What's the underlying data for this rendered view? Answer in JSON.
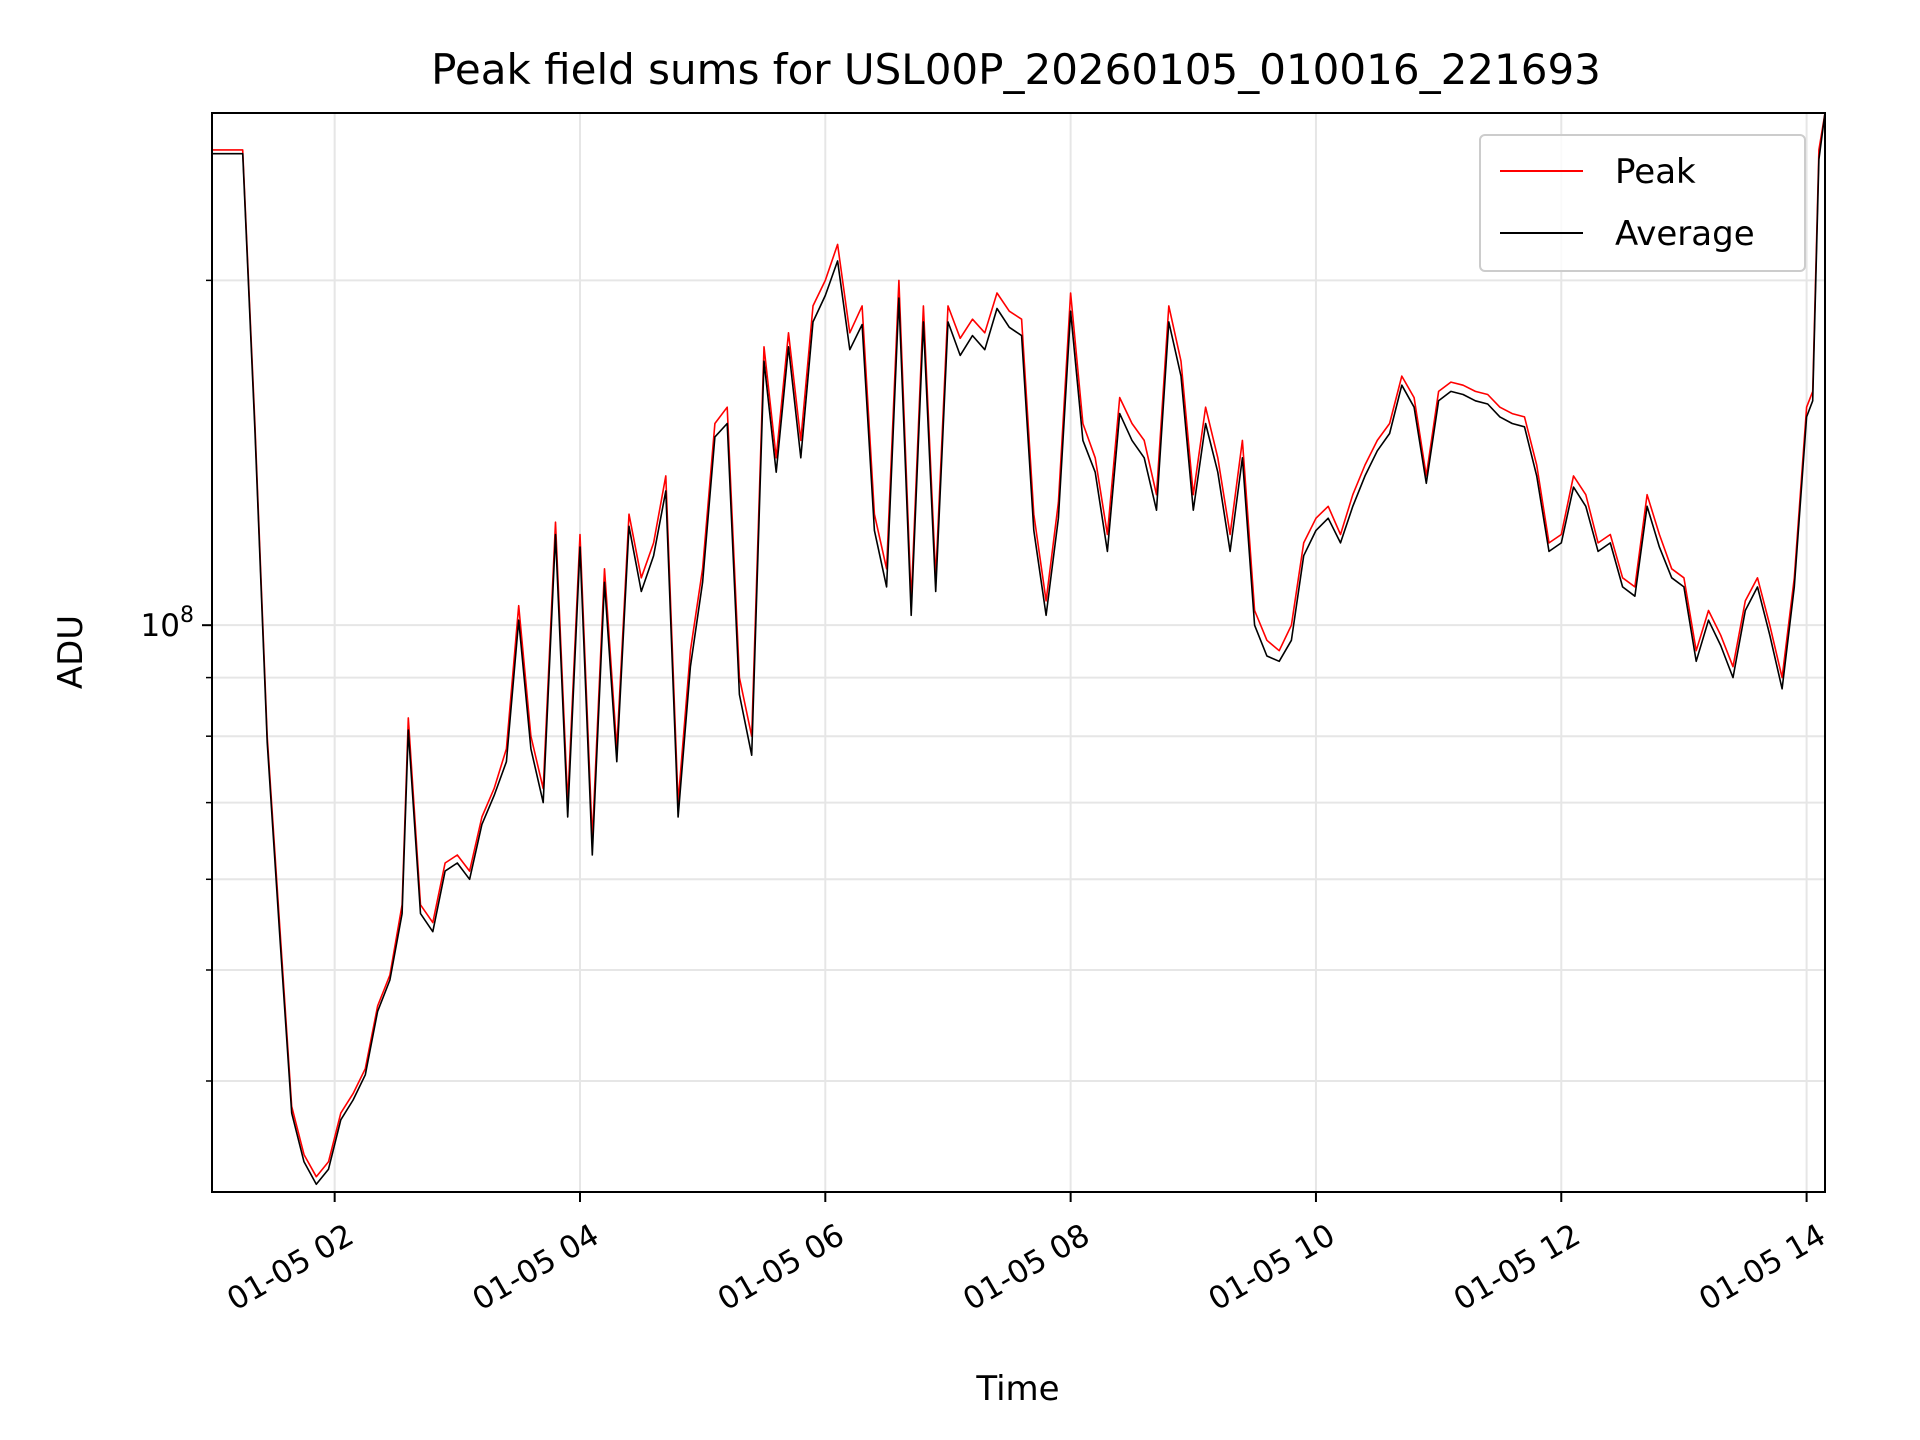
{
  "chart_data": {
    "type": "line",
    "title": "Peak field sums for USL00P_20260105_010016_221693",
    "xlabel": "Time",
    "ylabel": "ADU",
    "yscale": "log",
    "ylim": [
      32000000,
      280000000
    ],
    "xlim_hours": [
      1.0,
      14.15
    ],
    "x_ticks": [
      {
        "hour": 2,
        "label": "01-05 02"
      },
      {
        "hour": 4,
        "label": "01-05 04"
      },
      {
        "hour": 6,
        "label": "01-05 06"
      },
      {
        "hour": 8,
        "label": "01-05 08"
      },
      {
        "hour": 10,
        "label": "01-05 10"
      },
      {
        "hour": 12,
        "label": "01-05 12"
      },
      {
        "hour": 14,
        "label": "01-05 14"
      }
    ],
    "y_major_ticks": [
      {
        "value": 100000000,
        "base": "10",
        "exp": "8"
      }
    ],
    "y_minor_ticks": [
      40000000,
      50000000,
      60000000,
      70000000,
      80000000,
      90000000,
      200000000
    ],
    "grid": true,
    "legend_position": "top-right",
    "legend": [
      {
        "name": "Peak",
        "color": "#ff0000"
      },
      {
        "name": "Average",
        "color": "#000000"
      }
    ],
    "series": [
      {
        "name": "Peak",
        "color": "#ff0000",
        "x_hours": [
          1.0,
          1.15,
          1.25,
          1.35,
          1.45,
          1.55,
          1.65,
          1.75,
          1.85,
          1.95,
          2.05,
          2.15,
          2.25,
          2.35,
          2.45,
          2.55,
          2.6,
          2.7,
          2.8,
          2.9,
          3.0,
          3.1,
          3.2,
          3.3,
          3.4,
          3.5,
          3.6,
          3.7,
          3.8,
          3.9,
          4.0,
          4.1,
          4.2,
          4.3,
          4.4,
          4.5,
          4.6,
          4.7,
          4.8,
          4.9,
          5.0,
          5.1,
          5.2,
          5.3,
          5.4,
          5.5,
          5.6,
          5.7,
          5.8,
          5.9,
          6.0,
          6.1,
          6.2,
          6.3,
          6.4,
          6.5,
          6.6,
          6.7,
          6.8,
          6.9,
          7.0,
          7.1,
          7.2,
          7.3,
          7.4,
          7.5,
          7.6,
          7.7,
          7.8,
          7.9,
          8.0,
          8.1,
          8.2,
          8.3,
          8.4,
          8.5,
          8.6,
          8.7,
          8.8,
          8.9,
          9.0,
          9.1,
          9.2,
          9.3,
          9.4,
          9.5,
          9.6,
          9.7,
          9.8,
          9.9,
          10.0,
          10.1,
          10.2,
          10.3,
          10.4,
          10.5,
          10.6,
          10.7,
          10.8,
          10.9,
          11.0,
          11.1,
          11.2,
          11.3,
          11.4,
          11.5,
          11.6,
          11.7,
          11.8,
          11.9,
          12.0,
          12.1,
          12.2,
          12.3,
          12.4,
          12.5,
          12.6,
          12.7,
          12.8,
          12.9,
          13.0,
          13.1,
          13.2,
          13.3,
          13.4,
          13.5,
          13.6,
          13.7,
          13.8,
          13.9,
          14.0,
          14.05,
          14.1,
          14.15
        ],
        "values": [
          260000000,
          260000000,
          260000000,
          150000000,
          80000000,
          55000000,
          38000000,
          34500000,
          33000000,
          34000000,
          37500000,
          39000000,
          41000000,
          46500000,
          49500000,
          57000000,
          83000000,
          57000000,
          55000000,
          62000000,
          63000000,
          61000000,
          68000000,
          72000000,
          78000000,
          104000000,
          80000000,
          72000000,
          123000000,
          70000000,
          120000000,
          65000000,
          112000000,
          78000000,
          125000000,
          110000000,
          118000000,
          135000000,
          70000000,
          95000000,
          112000000,
          150000000,
          155000000,
          90000000,
          80000000,
          175000000,
          140000000,
          180000000,
          145000000,
          190000000,
          200000000,
          215000000,
          180000000,
          190000000,
          125000000,
          112000000,
          200000000,
          105000000,
          190000000,
          110000000,
          190000000,
          178000000,
          185000000,
          180000000,
          195000000,
          188000000,
          185000000,
          125000000,
          105000000,
          128000000,
          195000000,
          150000000,
          140000000,
          120000000,
          158000000,
          150000000,
          145000000,
          130000000,
          190000000,
          170000000,
          130000000,
          155000000,
          140000000,
          120000000,
          145000000,
          103000000,
          97000000,
          95000000,
          100000000,
          118000000,
          124000000,
          127000000,
          120000000,
          130000000,
          138000000,
          145000000,
          150000000,
          165000000,
          158000000,
          135000000,
          160000000,
          163000000,
          162000000,
          160000000,
          159000000,
          155000000,
          153000000,
          152000000,
          138000000,
          118000000,
          120000000,
          135000000,
          130000000,
          118000000,
          120000000,
          110000000,
          108000000,
          130000000,
          120000000,
          112000000,
          110000000,
          95000000,
          103000000,
          98000000,
          92000000,
          105000000,
          110000000,
          100000000,
          90000000,
          110000000,
          155000000,
          160000000,
          260000000,
          290000000
        ]
      },
      {
        "name": "Average",
        "color": "#000000",
        "x_hours": [
          1.0,
          1.15,
          1.25,
          1.35,
          1.45,
          1.55,
          1.65,
          1.75,
          1.85,
          1.95,
          2.05,
          2.15,
          2.25,
          2.35,
          2.45,
          2.55,
          2.6,
          2.7,
          2.8,
          2.9,
          3.0,
          3.1,
          3.2,
          3.3,
          3.4,
          3.5,
          3.6,
          3.7,
          3.8,
          3.9,
          4.0,
          4.1,
          4.2,
          4.3,
          4.4,
          4.5,
          4.6,
          4.7,
          4.8,
          4.9,
          5.0,
          5.1,
          5.2,
          5.3,
          5.4,
          5.5,
          5.6,
          5.7,
          5.8,
          5.9,
          6.0,
          6.1,
          6.2,
          6.3,
          6.4,
          6.5,
          6.6,
          6.7,
          6.8,
          6.9,
          7.0,
          7.1,
          7.2,
          7.3,
          7.4,
          7.5,
          7.6,
          7.7,
          7.8,
          7.9,
          8.0,
          8.1,
          8.2,
          8.3,
          8.4,
          8.5,
          8.6,
          8.7,
          8.8,
          8.9,
          9.0,
          9.1,
          9.2,
          9.3,
          9.4,
          9.5,
          9.6,
          9.7,
          9.8,
          9.9,
          10.0,
          10.1,
          10.2,
          10.3,
          10.4,
          10.5,
          10.6,
          10.7,
          10.8,
          10.9,
          11.0,
          11.1,
          11.2,
          11.3,
          11.4,
          11.5,
          11.6,
          11.7,
          11.8,
          11.9,
          12.0,
          12.1,
          12.2,
          12.3,
          12.4,
          12.5,
          12.6,
          12.7,
          12.8,
          12.9,
          13.0,
          13.1,
          13.2,
          13.3,
          13.4,
          13.5,
          13.6,
          13.7,
          13.8,
          13.9,
          14.0,
          14.05,
          14.1,
          14.15
        ],
        "values": [
          258000000,
          258000000,
          258000000,
          148000000,
          79000000,
          54000000,
          37500000,
          34000000,
          32500000,
          33500000,
          37000000,
          38500000,
          40500000,
          46000000,
          49000000,
          56000000,
          81000000,
          56000000,
          54000000,
          61000000,
          62000000,
          60000000,
          67000000,
          71000000,
          76000000,
          101000000,
          78000000,
          70000000,
          120000000,
          68000000,
          117000000,
          63000000,
          109000000,
          76000000,
          122000000,
          107000000,
          115000000,
          131000000,
          68000000,
          92000000,
          109000000,
          146000000,
          150000000,
          87000000,
          77000000,
          170000000,
          136000000,
          175000000,
          140000000,
          184000000,
          194000000,
          208000000,
          174000000,
          183000000,
          121000000,
          108000000,
          193000000,
          102000000,
          184000000,
          107000000,
          184000000,
          172000000,
          179000000,
          174000000,
          189000000,
          182000000,
          179000000,
          121000000,
          102000000,
          124000000,
          188000000,
          145000000,
          136000000,
          116000000,
          153000000,
          145000000,
          140000000,
          126000000,
          184000000,
          165000000,
          126000000,
          150000000,
          136000000,
          116000000,
          140000000,
          100000000,
          94000000,
          93000000,
          97000000,
          115000000,
          121000000,
          124000000,
          118000000,
          127000000,
          135000000,
          142000000,
          147000000,
          162000000,
          155000000,
          133000000,
          157000000,
          160000000,
          159000000,
          157000000,
          156000000,
          152000000,
          150000000,
          149000000,
          135000000,
          116000000,
          118000000,
          132000000,
          127000000,
          116000000,
          118000000,
          108000000,
          106000000,
          127000000,
          117000000,
          110000000,
          108000000,
          93000000,
          101000000,
          96000000,
          90000000,
          103000000,
          108000000,
          98000000,
          88000000,
          108000000,
          152000000,
          157000000,
          255000000,
          285000000
        ]
      }
    ]
  }
}
